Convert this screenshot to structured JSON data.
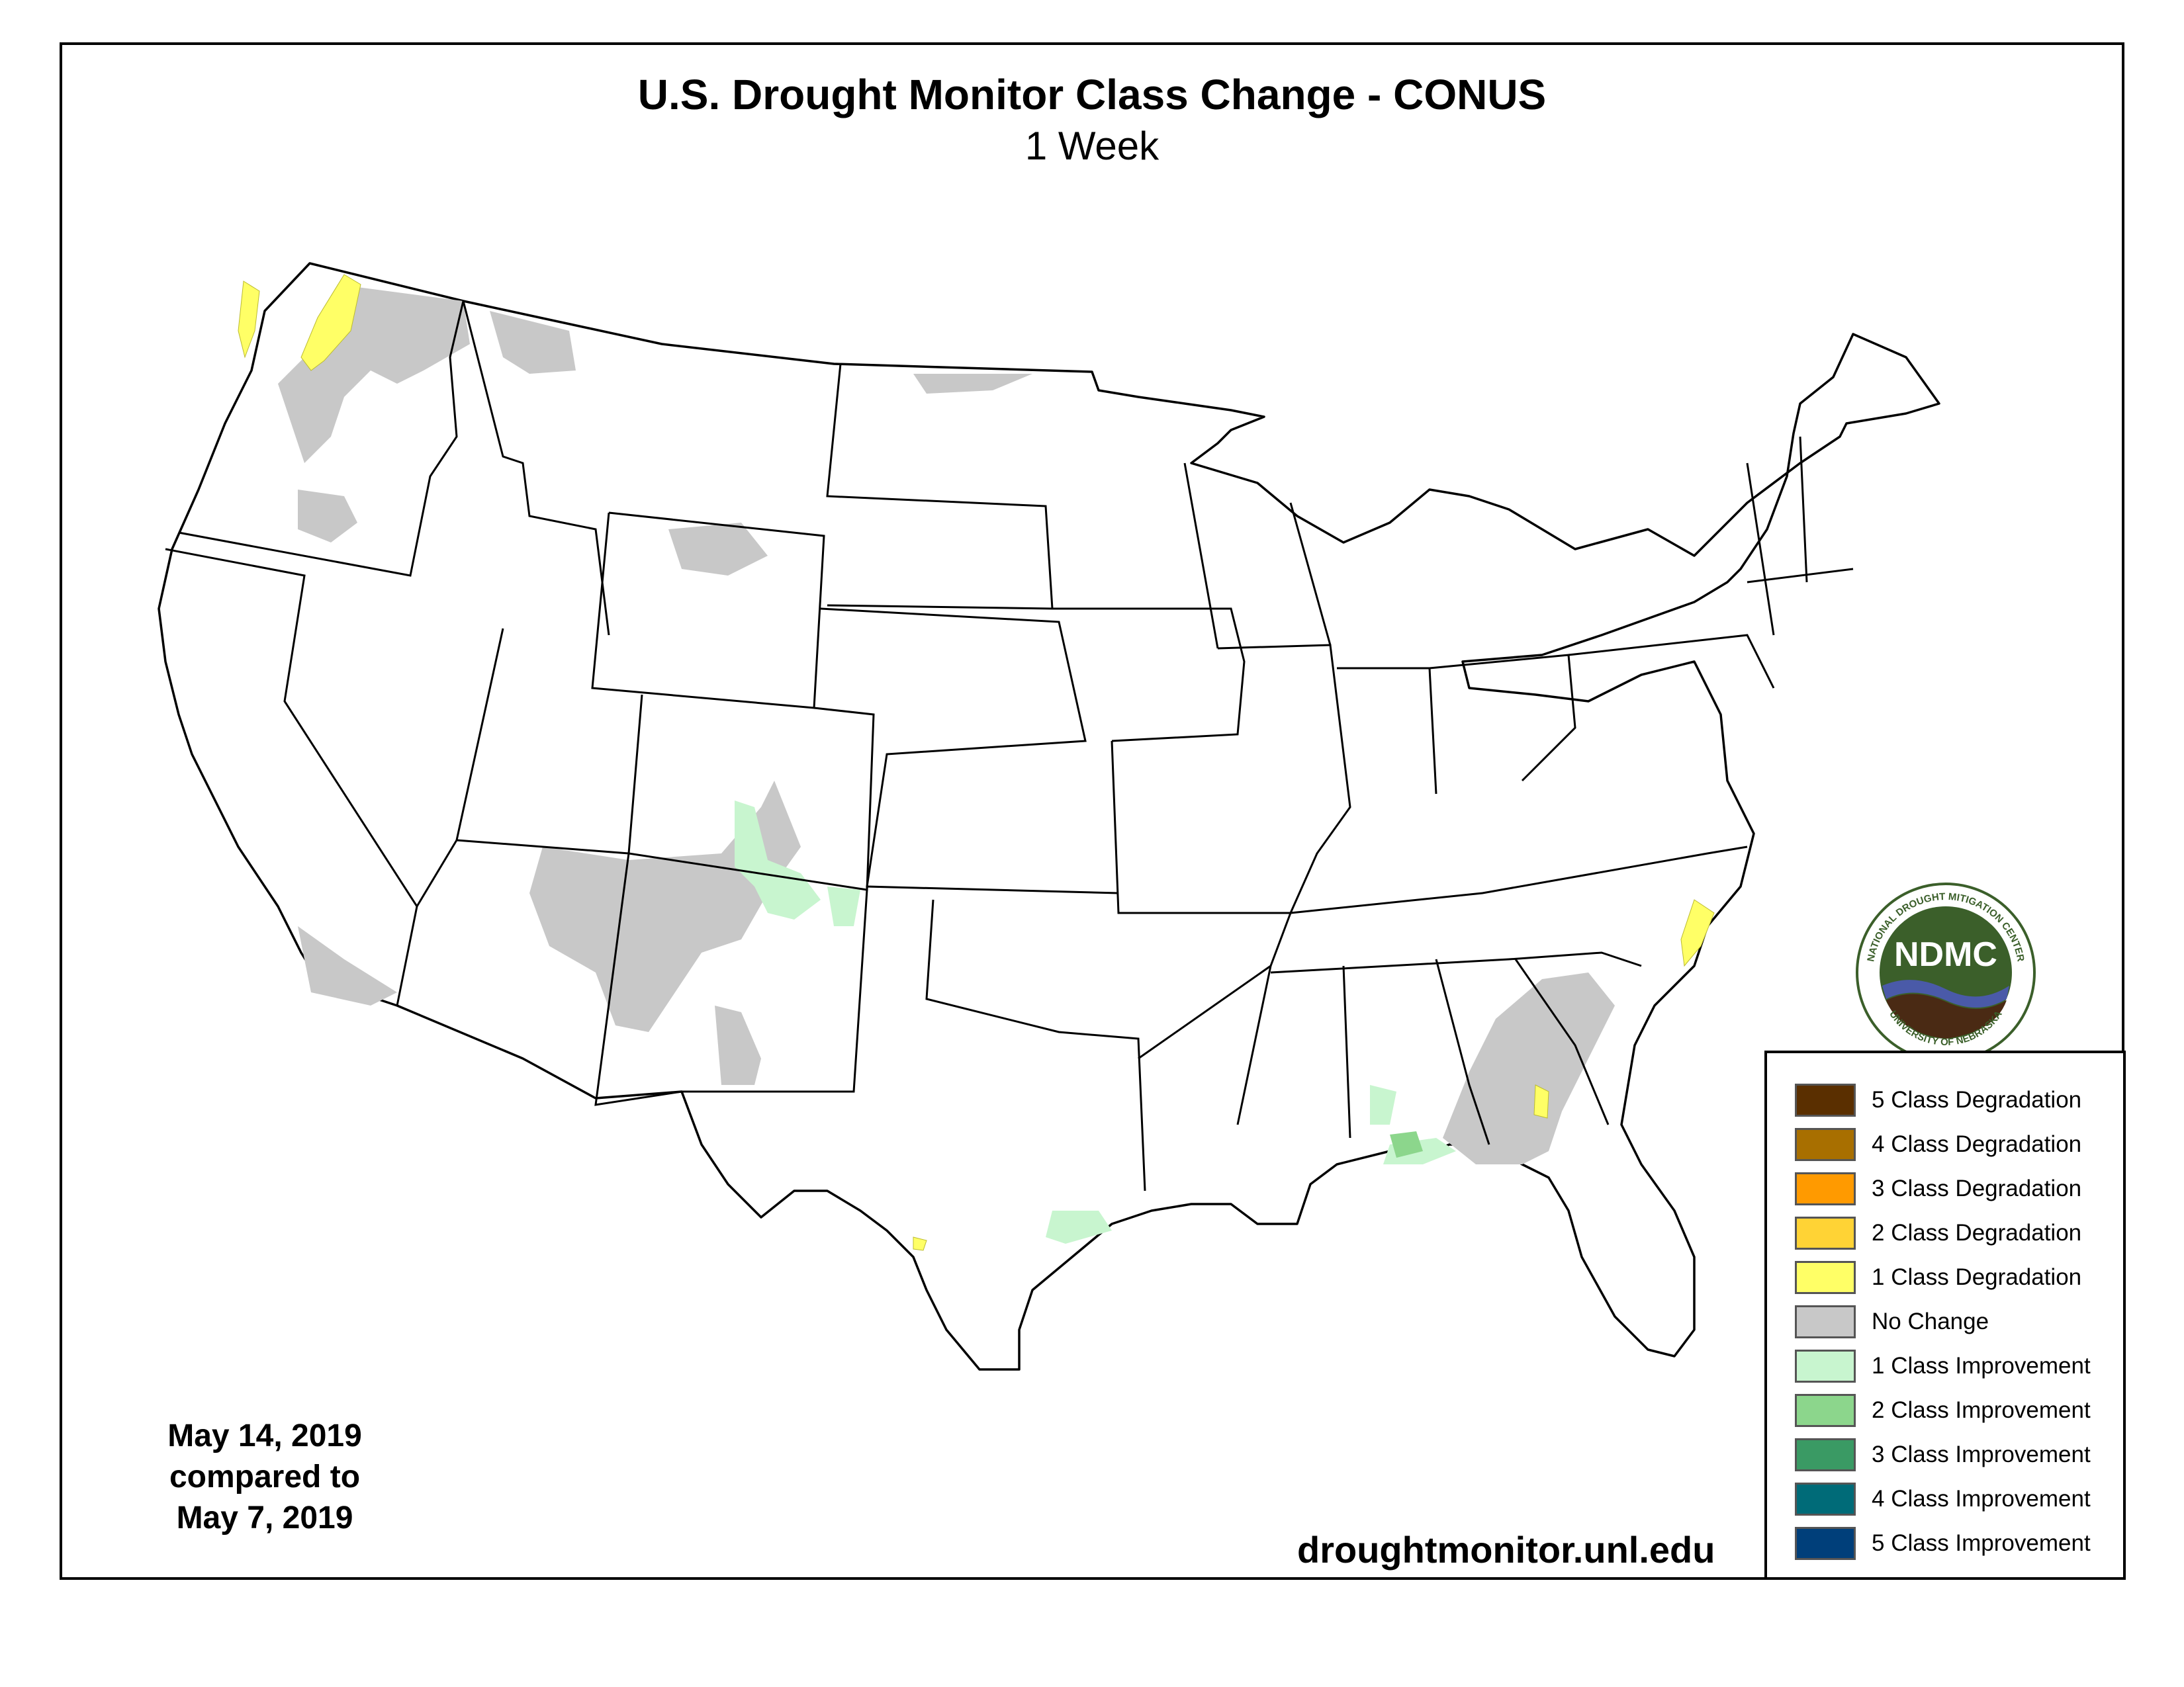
{
  "map_title": "U.S. Drought Monitor Class Change - CONUS",
  "map_subtitle": "1 Week",
  "dates": {
    "line1": "May 14, 2019",
    "line2": "compared to",
    "line3": "May 7, 2019"
  },
  "url": "droughtmonitor.unl.edu",
  "logo": {
    "abbrev": "NDMC",
    "ring_top": "NATIONAL DROUGHT MITIGATION CENTER",
    "ring_bottom": "UNIVERSITY OF NEBRASKA"
  },
  "legend": [
    {
      "label": "5 Class Degradation",
      "color": "#5a2f00"
    },
    {
      "label": "4 Class Degradation",
      "color": "#a86f00"
    },
    {
      "label": "3 Class Degradation",
      "color": "#ff9a00"
    },
    {
      "label": "2 Class Degradation",
      "color": "#ffd335"
    },
    {
      "label": "1 Class Degradation",
      "color": "#ffff66"
    },
    {
      "label": "No Change",
      "color": "#c8c8c8"
    },
    {
      "label": "1 Class Improvement",
      "color": "#c8f5cf"
    },
    {
      "label": "2 Class Improvement",
      "color": "#8cd68c"
    },
    {
      "label": "3 Class Improvement",
      "color": "#3a9a64"
    },
    {
      "label": "4 Class Improvement",
      "color": "#006b78"
    },
    {
      "label": "5 Class Improvement",
      "color": "#003f7a"
    }
  ],
  "colors": {
    "no_change": "#c8c8c8",
    "degradation_1": "#ffff66",
    "improvement_1": "#c8f5cf",
    "improvement_2": "#8cd68c",
    "logo_green": "#3b5f2a",
    "logo_brown": "#4a2a14",
    "logo_blue": "#4a5aa8"
  }
}
